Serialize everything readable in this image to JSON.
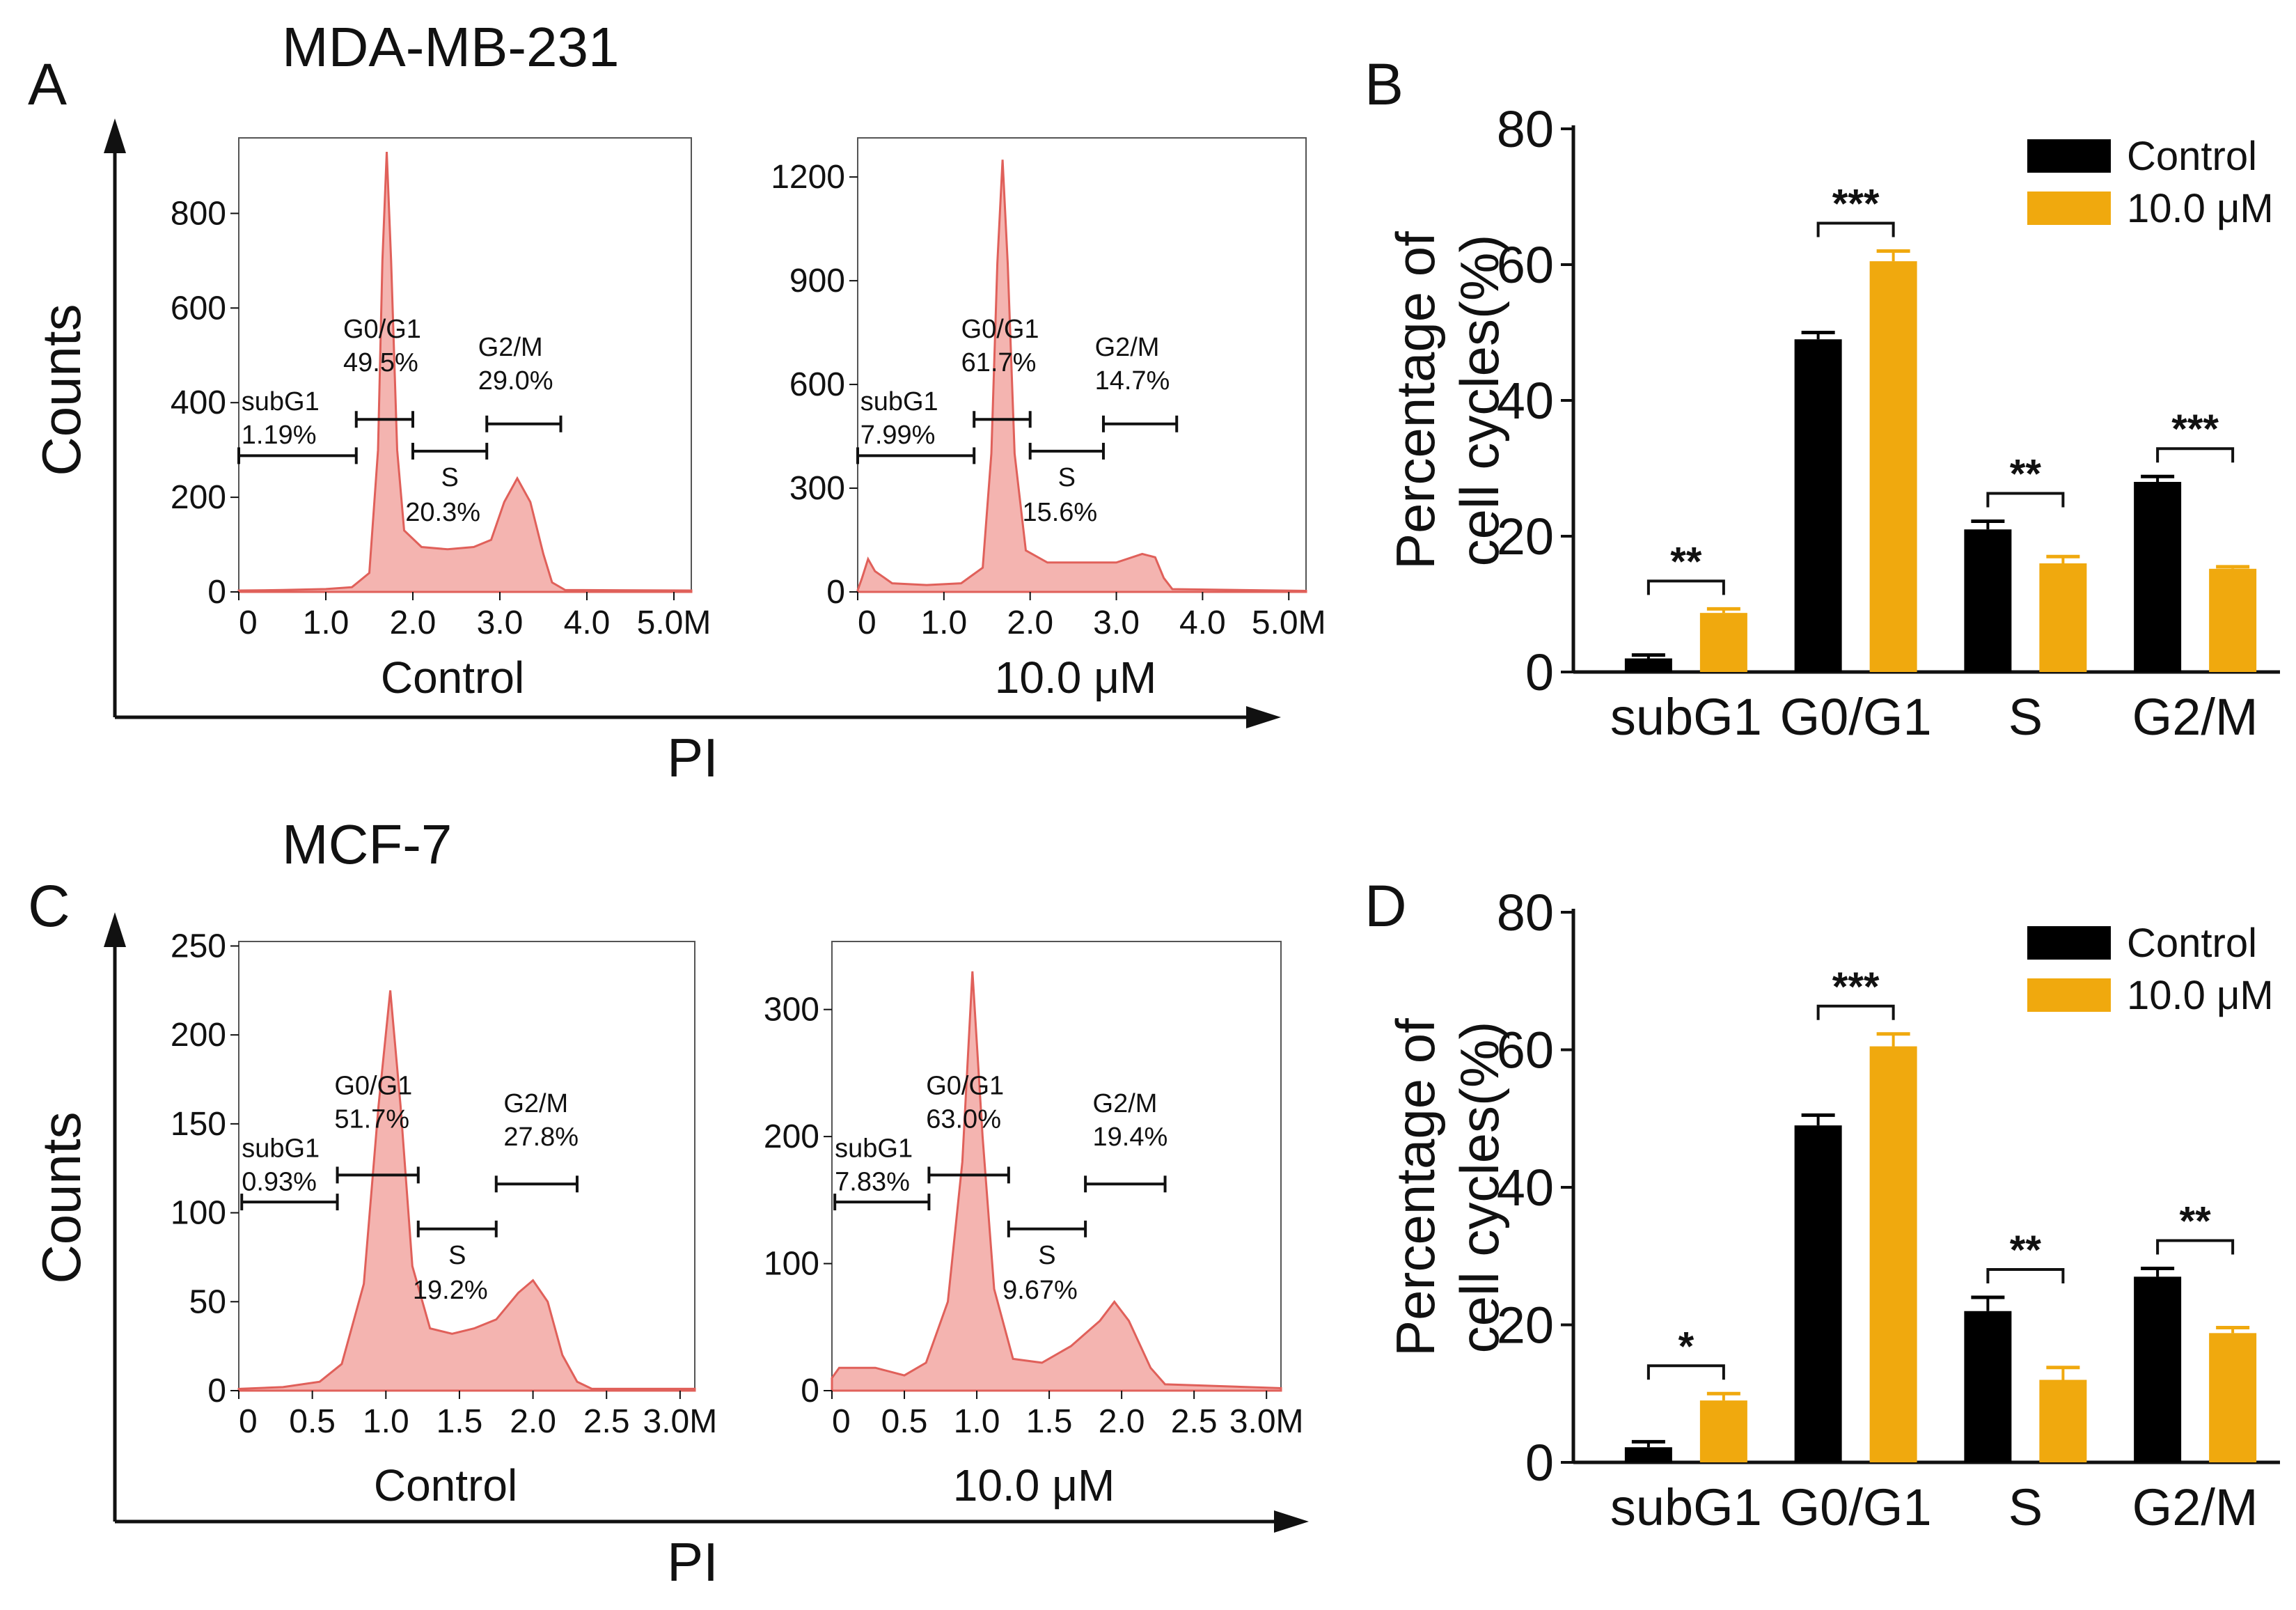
{
  "colors": {
    "histogram_fill": "#f4b4b0",
    "histogram_line": "#e0605a",
    "control_bar": "#000000",
    "treated_bar": "#f0a90e"
  },
  "rows": [
    {
      "letter_hist": "A",
      "letter_bar": "B",
      "cell_line": "MDA-MB-231",
      "y_axis_label": "Counts",
      "x_axis_label": "PI",
      "histograms": [
        {
          "x_label": "Control",
          "x_ticks": [
            "0",
            "1.0",
            "2.0",
            "3.0",
            "4.0",
            "5.0M"
          ],
          "x_max": 5.2,
          "y_ticks": [
            "0",
            "200",
            "400",
            "600",
            "800"
          ],
          "y_tick_values": [
            0,
            200,
            400,
            600,
            800
          ],
          "y_max": 950,
          "profile": [
            [
              0,
              3
            ],
            [
              0.5,
              4
            ],
            [
              1.0,
              6
            ],
            [
              1.3,
              10
            ],
            [
              1.5,
              40
            ],
            [
              1.6,
              300
            ],
            [
              1.65,
              700
            ],
            [
              1.7,
              930
            ],
            [
              1.75,
              700
            ],
            [
              1.82,
              300
            ],
            [
              1.9,
              130
            ],
            [
              2.1,
              95
            ],
            [
              2.4,
              90
            ],
            [
              2.7,
              95
            ],
            [
              2.9,
              110
            ],
            [
              3.05,
              190
            ],
            [
              3.2,
              240
            ],
            [
              3.35,
              190
            ],
            [
              3.5,
              80
            ],
            [
              3.6,
              20
            ],
            [
              3.75,
              4
            ],
            [
              5.2,
              3
            ]
          ],
          "gates": [
            {
              "name": "subG1",
              "pct": "1.19%"
            },
            {
              "name": "G0/G1",
              "pct": "49.5%"
            },
            {
              "name": "S",
              "pct": "20.3%"
            },
            {
              "name": "G2/M",
              "pct": "29.0%"
            }
          ]
        },
        {
          "x_label": "10.0 μM",
          "x_ticks": [
            "0",
            "1.0",
            "2.0",
            "3.0",
            "4.0",
            "5.0M"
          ],
          "x_max": 5.2,
          "y_ticks": [
            "0",
            "300",
            "600",
            "900",
            "1200"
          ],
          "y_tick_values": [
            0,
            300,
            600,
            900,
            1200
          ],
          "y_max": 1300,
          "profile": [
            [
              0,
              5
            ],
            [
              0.05,
              40
            ],
            [
              0.12,
              95
            ],
            [
              0.2,
              60
            ],
            [
              0.4,
              25
            ],
            [
              0.8,
              20
            ],
            [
              1.2,
              25
            ],
            [
              1.45,
              70
            ],
            [
              1.55,
              400
            ],
            [
              1.62,
              950
            ],
            [
              1.68,
              1250
            ],
            [
              1.74,
              950
            ],
            [
              1.82,
              400
            ],
            [
              1.95,
              120
            ],
            [
              2.2,
              85
            ],
            [
              2.6,
              85
            ],
            [
              3.0,
              85
            ],
            [
              3.3,
              110
            ],
            [
              3.45,
              100
            ],
            [
              3.55,
              40
            ],
            [
              3.65,
              8
            ],
            [
              5.2,
              3
            ]
          ],
          "gates": [
            {
              "name": "subG1",
              "pct": "7.99%"
            },
            {
              "name": "G0/G1",
              "pct": "61.7%"
            },
            {
              "name": "S",
              "pct": "15.6%"
            },
            {
              "name": "G2/M",
              "pct": "14.7%"
            }
          ]
        }
      ],
      "bar_chart": {
        "type": "bar",
        "ylabel_line1": "Percentage of",
        "ylabel_line2": "cell cycles(%)",
        "ylim": [
          0,
          80
        ],
        "y_ticks": [
          "0",
          "20",
          "40",
          "60",
          "80"
        ],
        "categories": [
          "subG1",
          "G0/G1",
          "S",
          "G2/M"
        ],
        "series": [
          {
            "name": "Control",
            "values": [
              2.0,
              49.0,
              21.0,
              28.0
            ],
            "errors": [
              0.5,
              1.0,
              1.2,
              0.8
            ]
          },
          {
            "name": "10.0 μM",
            "values": [
              8.7,
              60.5,
              16.0,
              15.2
            ],
            "errors": [
              0.6,
              1.5,
              1.0,
              0.3
            ]
          }
        ],
        "significance": [
          "**",
          "***",
          "**",
          "***"
        ]
      }
    },
    {
      "letter_hist": "C",
      "letter_bar": "D",
      "cell_line": "MCF-7",
      "y_axis_label": "Counts",
      "x_axis_label": "PI",
      "histograms": [
        {
          "x_label": "Control",
          "x_ticks": [
            "0",
            "0.5",
            "1.0",
            "1.5",
            "2.0",
            "2.5",
            "3.0M"
          ],
          "x_max": 3.1,
          "y_ticks": [
            "0",
            "50",
            "100",
            "150",
            "200",
            "250"
          ],
          "y_tick_values": [
            0,
            50,
            100,
            150,
            200,
            250
          ],
          "y_max": 250,
          "profile": [
            [
              0,
              1
            ],
            [
              0.3,
              2
            ],
            [
              0.55,
              5
            ],
            [
              0.7,
              15
            ],
            [
              0.85,
              60
            ],
            [
              0.95,
              160
            ],
            [
              1.03,
              225
            ],
            [
              1.1,
              160
            ],
            [
              1.18,
              70
            ],
            [
              1.3,
              35
            ],
            [
              1.45,
              32
            ],
            [
              1.6,
              35
            ],
            [
              1.75,
              40
            ],
            [
              1.9,
              55
            ],
            [
              2.0,
              62
            ],
            [
              2.1,
              50
            ],
            [
              2.2,
              20
            ],
            [
              2.3,
              5
            ],
            [
              2.4,
              1
            ],
            [
              3.1,
              1
            ]
          ],
          "gates": [
            {
              "name": "subG1",
              "pct": "0.93%"
            },
            {
              "name": "G0/G1",
              "pct": "51.7%"
            },
            {
              "name": "S",
              "pct": "19.2%"
            },
            {
              "name": "G2/M",
              "pct": "27.8%"
            }
          ]
        },
        {
          "x_label": "10.0 μM",
          "x_ticks": [
            "0",
            "0.5",
            "1.0",
            "1.5",
            "2.0",
            "2.5",
            "3.0M"
          ],
          "x_max": 3.1,
          "y_ticks": [
            "0",
            "100",
            "200",
            "300"
          ],
          "y_tick_values": [
            0,
            100,
            200,
            300
          ],
          "y_max": 350,
          "profile": [
            [
              0,
              10
            ],
            [
              0.05,
              18
            ],
            [
              0.3,
              18
            ],
            [
              0.5,
              12
            ],
            [
              0.65,
              22
            ],
            [
              0.8,
              70
            ],
            [
              0.9,
              180
            ],
            [
              0.97,
              330
            ],
            [
              1.04,
              200
            ],
            [
              1.12,
              80
            ],
            [
              1.25,
              25
            ],
            [
              1.45,
              22
            ],
            [
              1.65,
              35
            ],
            [
              1.85,
              55
            ],
            [
              1.95,
              70
            ],
            [
              2.05,
              55
            ],
            [
              2.2,
              18
            ],
            [
              2.3,
              5
            ],
            [
              3.1,
              2
            ]
          ],
          "gates": [
            {
              "name": "subG1",
              "pct": "7.83%"
            },
            {
              "name": "G0/G1",
              "pct": "63.0%"
            },
            {
              "name": "S",
              "pct": "9.67%"
            },
            {
              "name": "G2/M",
              "pct": "19.4%"
            }
          ]
        }
      ],
      "bar_chart": {
        "type": "bar",
        "ylabel_line1": "Percentage of",
        "ylabel_line2": "cell cycles(%)",
        "ylim": [
          0,
          80
        ],
        "y_ticks": [
          "0",
          "20",
          "40",
          "60",
          "80"
        ],
        "categories": [
          "subG1",
          "G0/G1",
          "S",
          "G2/M"
        ],
        "series": [
          {
            "name": "Control",
            "values": [
              2.2,
              49.0,
              22.0,
              27.0
            ],
            "errors": [
              0.8,
              1.5,
              2.0,
              1.2
            ]
          },
          {
            "name": "10.0 μM",
            "values": [
              9.0,
              60.5,
              12.0,
              18.8
            ],
            "errors": [
              1.0,
              1.8,
              1.8,
              0.8
            ]
          }
        ],
        "significance": [
          "*",
          "***",
          "**",
          "**"
        ]
      }
    }
  ]
}
